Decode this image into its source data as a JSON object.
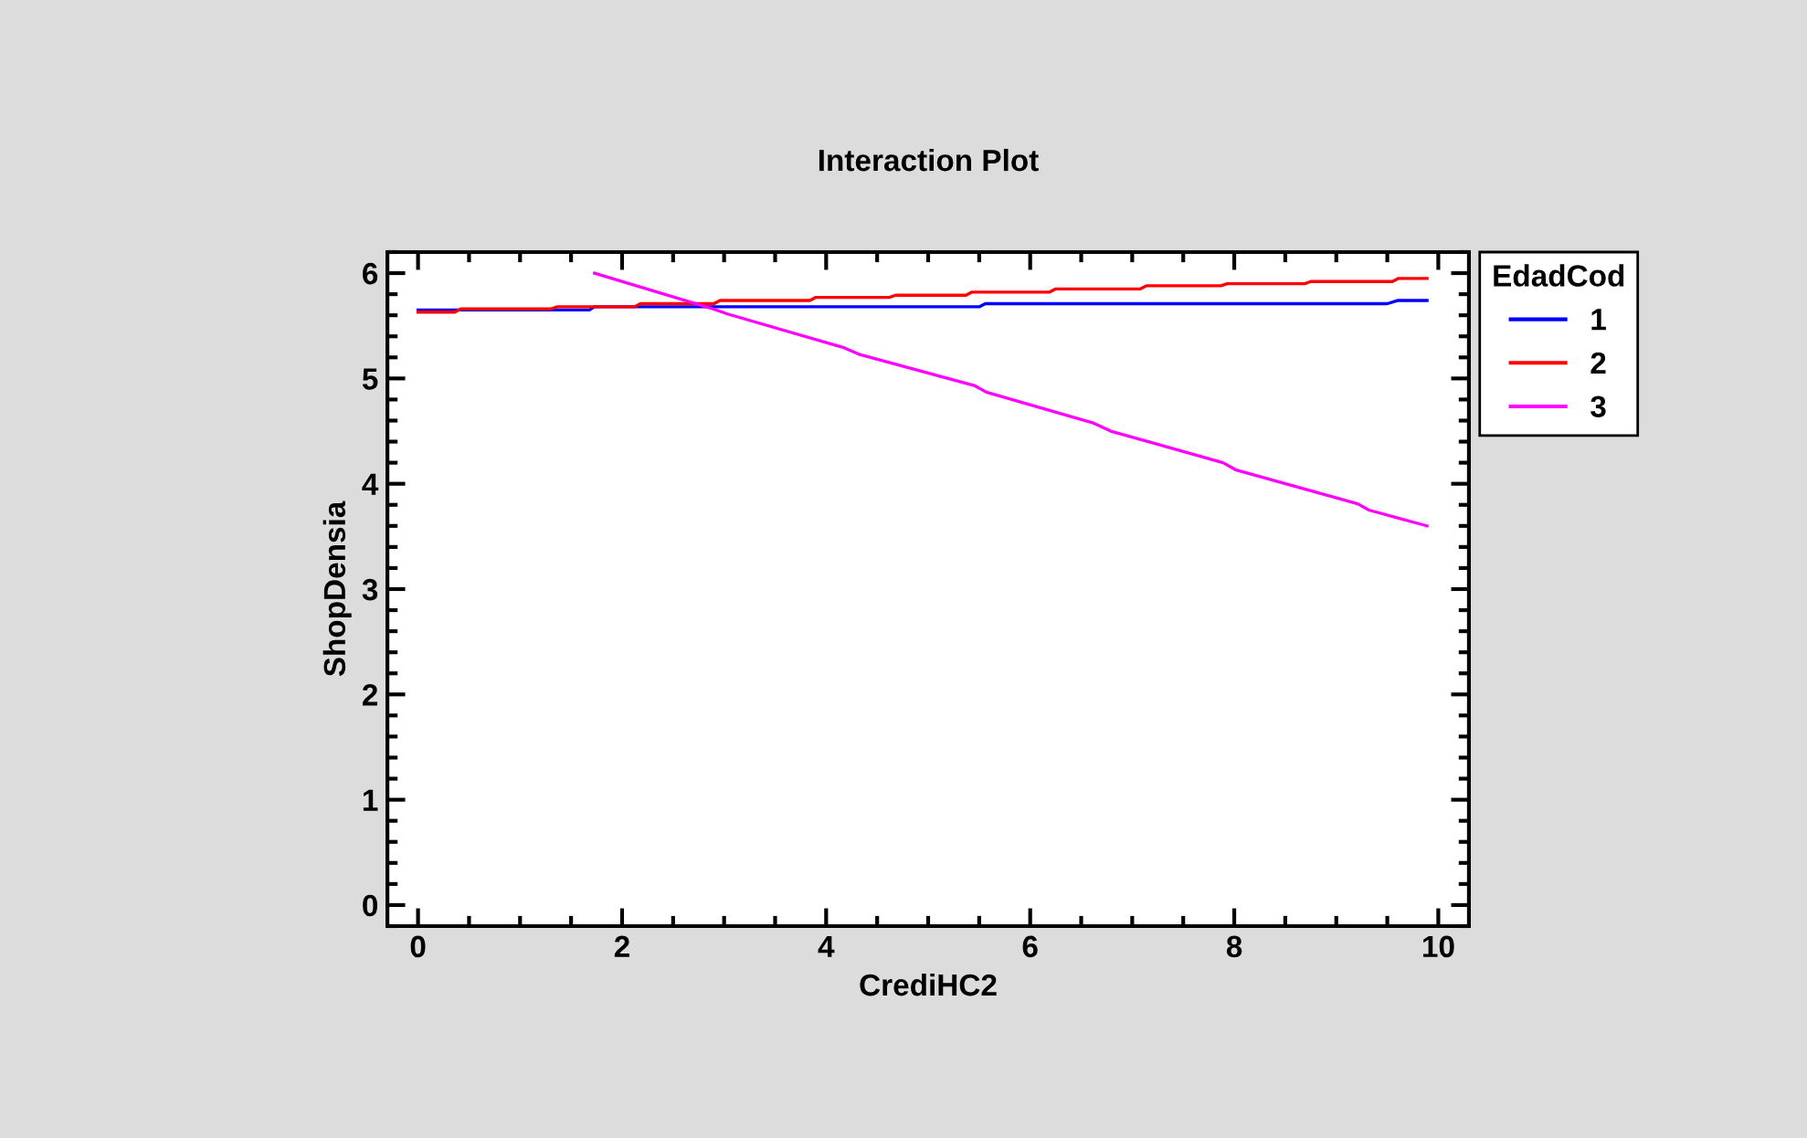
{
  "chart_data": {
    "type": "line",
    "title": "Interaction Plot",
    "xlabel": "CrediHC2",
    "ylabel": "ShopDensia",
    "legend_title": "EdadCod",
    "xlim": [
      -0.3,
      10.3
    ],
    "xticks": [
      0,
      2,
      4,
      6,
      8,
      10
    ],
    "ylim": [
      -0.2,
      6.2
    ],
    "yticks": [
      0,
      1,
      2,
      3,
      4,
      5,
      6
    ],
    "grid": false,
    "legend": "right",
    "series": [
      {
        "name": "1",
        "color": "#0000ff",
        "x": [
          0,
          1.68,
          1.73,
          5.5,
          5.56,
          9.5,
          9.6,
          9.89
        ],
        "values": [
          5.65,
          5.65,
          5.68,
          5.68,
          5.71,
          5.71,
          5.74,
          5.74
        ]
      },
      {
        "name": "2",
        "color": "#ff0000",
        "x": [
          0,
          0.36,
          0.42,
          1.3,
          1.36,
          2.12,
          2.18,
          2.9,
          2.96,
          3.84,
          3.9,
          4.62,
          4.68,
          5.37,
          5.43,
          6.19,
          6.25,
          7.08,
          7.14,
          7.87,
          7.93,
          8.69,
          8.75,
          9.55,
          9.61,
          9.89
        ],
        "values": [
          5.63,
          5.63,
          5.66,
          5.66,
          5.68,
          5.68,
          5.71,
          5.71,
          5.74,
          5.74,
          5.77,
          5.77,
          5.79,
          5.79,
          5.82,
          5.82,
          5.85,
          5.85,
          5.88,
          5.88,
          5.9,
          5.9,
          5.92,
          5.92,
          5.95,
          5.95
        ]
      },
      {
        "name": "3",
        "color": "#ff00ff",
        "x": [
          1.73,
          2.89,
          3.04,
          4.18,
          4.32,
          5.46,
          5.57,
          6.61,
          6.79,
          7.89,
          8.02,
          9.21,
          9.32,
          9.89
        ],
        "values": [
          6.0,
          5.66,
          5.61,
          5.29,
          5.23,
          4.93,
          4.87,
          4.58,
          4.5,
          4.2,
          4.13,
          3.81,
          3.75,
          3.6
        ]
      }
    ]
  }
}
